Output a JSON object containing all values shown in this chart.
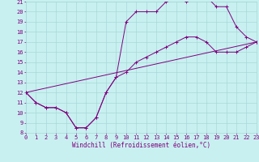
{
  "xlabel": "Windchill (Refroidissement éolien,°C)",
  "bg_color": "#c8f0f0",
  "grid_color": "#a8d8d8",
  "line_color": "#800080",
  "xmin": 0,
  "xmax": 23,
  "ymin": 8,
  "ymax": 21,
  "yticks": [
    8,
    9,
    10,
    11,
    12,
    13,
    14,
    15,
    16,
    17,
    18,
    19,
    20,
    21
  ],
  "xticks": [
    0,
    1,
    2,
    3,
    4,
    5,
    6,
    7,
    8,
    9,
    10,
    11,
    12,
    13,
    14,
    15,
    16,
    17,
    18,
    19,
    20,
    21,
    22,
    23
  ],
  "line1_x": [
    0,
    1,
    2,
    3,
    4,
    5,
    6,
    7,
    8,
    9,
    10,
    11,
    12,
    13,
    14,
    15,
    16,
    17,
    18,
    19,
    20,
    21,
    22,
    23
  ],
  "line1_y": [
    12,
    11,
    10.5,
    10.5,
    10,
    8.5,
    8.5,
    9.5,
    12,
    13.5,
    19,
    20,
    20,
    20,
    21,
    21.5,
    21,
    21.5,
    21.5,
    20.5,
    20.5,
    18.5,
    17.5,
    17
  ],
  "line2_x": [
    0,
    1,
    2,
    3,
    4,
    5,
    6,
    7,
    8,
    9,
    10,
    11,
    12,
    13,
    14,
    15,
    16,
    17,
    18,
    19,
    20,
    21,
    22,
    23
  ],
  "line2_y": [
    12,
    11,
    10.5,
    10.5,
    10,
    8.5,
    8.5,
    9.5,
    12,
    13.5,
    14,
    15,
    15.5,
    16,
    16.5,
    17,
    17.5,
    17.5,
    17,
    16,
    16,
    16,
    16.5,
    17
  ],
  "line3_x": [
    0,
    23
  ],
  "line3_y": [
    12,
    17
  ],
  "xlabel_fontsize": 5.5,
  "tick_fontsize": 5.0,
  "marker_size": 2.2,
  "line_width": 0.7
}
